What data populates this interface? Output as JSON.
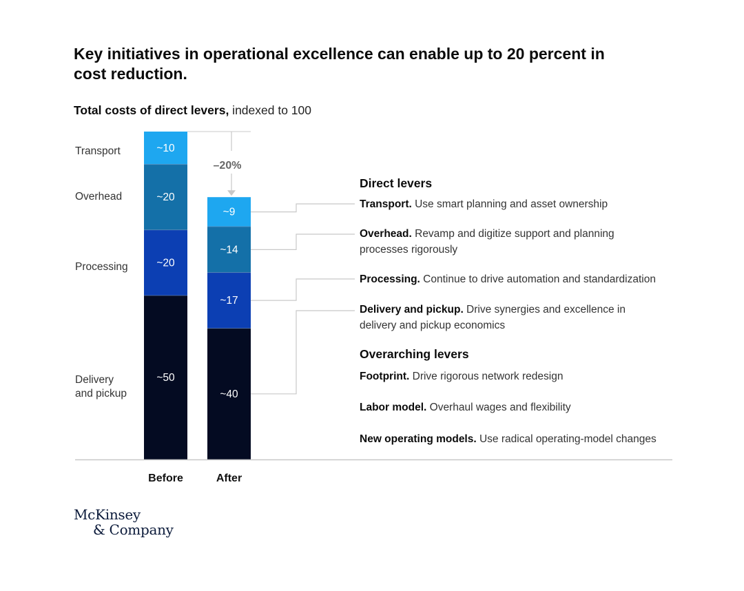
{
  "title": "Key initiatives in operational excellence can enable up to 20 percent in cost reduction.",
  "subtitle": {
    "bold": "Total costs of direct levers,",
    "rest": " indexed to 100"
  },
  "colors": {
    "Transport": "#1ea7f0",
    "Overhead": "#1470a8",
    "Processing": "#0c3fb3",
    "Delivery and pickup": "#040b22",
    "connector": "#c8c8c8",
    "baseline": "#c8c8c8"
  },
  "chart_data": {
    "type": "bar",
    "stacked": true,
    "categories": [
      "Before",
      "After"
    ],
    "series": [
      {
        "name": "Delivery and pickup",
        "values": [
          50,
          40
        ],
        "labels": [
          "~50",
          "~40"
        ]
      },
      {
        "name": "Processing",
        "values": [
          20,
          17
        ],
        "labels": [
          "~20",
          "~17"
        ]
      },
      {
        "name": "Overhead",
        "values": [
          20,
          14
        ],
        "labels": [
          "~20",
          "~14"
        ]
      },
      {
        "name": "Transport",
        "values": [
          10,
          9
        ],
        "labels": [
          "~10",
          "~9"
        ]
      }
    ],
    "segment_labels_left": [
      "Transport",
      "Overhead",
      "Processing",
      "Delivery\nand pickup"
    ],
    "change_annotation": "–20%",
    "ylim": [
      0,
      100
    ]
  },
  "direct_levers": {
    "heading": "Direct levers",
    "items": [
      {
        "bold": "Transport.",
        "text": " Use smart planning and asset ownership"
      },
      {
        "bold": "Overhead.",
        "text": " Revamp and digitize support and planning processes rigorously"
      },
      {
        "bold": "Processing.",
        "text": " Continue to drive automation and standardization"
      },
      {
        "bold": "Delivery and pickup.",
        "text": " Drive synergies and excellence in delivery and pickup economics"
      }
    ]
  },
  "overarching_levers": {
    "heading": "Overarching levers",
    "items": [
      {
        "bold": "Footprint.",
        "text": " Drive rigorous network redesign"
      },
      {
        "bold": "Labor model.",
        "text": " Overhaul wages and flexibility"
      },
      {
        "bold": "New operating models.",
        "text": " Use radical operating-model changes"
      }
    ]
  },
  "logo": {
    "line1": "McKinsey",
    "line2": "& Company"
  }
}
